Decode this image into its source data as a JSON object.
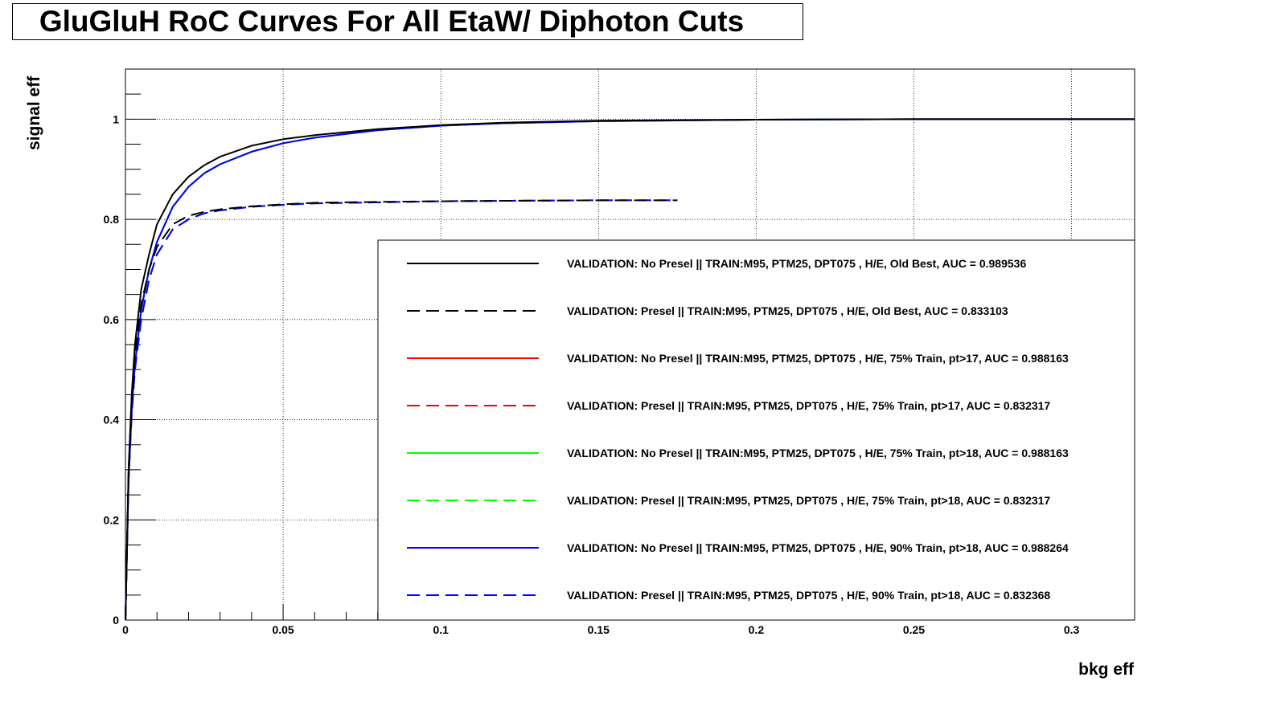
{
  "chart_data": {
    "type": "line",
    "title": "GluGluH RoC Curves For All EtaW/ Diphoton Cuts",
    "xlabel": "bkg eff",
    "ylabel": "signal eff",
    "xlim": [
      0,
      0.32
    ],
    "ylim": [
      0,
      1.1
    ],
    "x_ticks": [
      0,
      0.05,
      0.1,
      0.15,
      0.2,
      0.25,
      0.3
    ],
    "x_tick_labels": [
      "0",
      "0.05",
      "0.1",
      "0.15",
      "0.2",
      "0.25",
      "0.3"
    ],
    "y_ticks": [
      0,
      0.2,
      0.4,
      0.6,
      0.8,
      1.0
    ],
    "y_tick_labels": [
      "0",
      "0.2",
      "0.4",
      "0.6",
      "0.8",
      "1"
    ],
    "grid": true,
    "legend_position": "bottom-right",
    "series": [
      {
        "name": "VALIDATION: No Presel || TRAIN:M95, PTM25, DPT075 , H/E, Old Best, AUC = 0.989536",
        "color": "#000000",
        "dashed": false,
        "x": [
          0,
          0.001,
          0.002,
          0.003,
          0.005,
          0.0075,
          0.01,
          0.015,
          0.02,
          0.025,
          0.03,
          0.04,
          0.05,
          0.06,
          0.08,
          0.1,
          0.12,
          0.15,
          0.2,
          0.25,
          0.32
        ],
        "y": [
          0,
          0.3,
          0.45,
          0.55,
          0.66,
          0.73,
          0.79,
          0.85,
          0.885,
          0.908,
          0.925,
          0.947,
          0.96,
          0.968,
          0.98,
          0.988,
          0.993,
          0.997,
          0.999,
          1.0,
          1.0
        ]
      },
      {
        "name": "VALIDATION: Presel || TRAIN:M95, PTM25, DPT075 , H/E, Old Best, AUC = 0.833103",
        "color": "#000000",
        "dashed": true,
        "x": [
          0,
          0.001,
          0.002,
          0.003,
          0.005,
          0.0075,
          0.01,
          0.015,
          0.02,
          0.025,
          0.03,
          0.04,
          0.05,
          0.06,
          0.08,
          0.1,
          0.12,
          0.15,
          0.175
        ],
        "y": [
          0,
          0.3,
          0.44,
          0.53,
          0.63,
          0.7,
          0.745,
          0.79,
          0.807,
          0.815,
          0.82,
          0.826,
          0.83,
          0.833,
          0.835,
          0.836,
          0.837,
          0.838,
          0.838
        ]
      },
      {
        "name": "VALIDATION: No Presel || TRAIN:M95, PTM25, DPT075 , H/E, 75% Train, pt>17, AUC = 0.988163",
        "color": "#ff0000",
        "dashed": false,
        "x": [
          0,
          0.001,
          0.002,
          0.003,
          0.005,
          0.0075,
          0.01,
          0.015,
          0.02,
          0.025,
          0.03,
          0.04,
          0.05,
          0.06,
          0.08,
          0.1,
          0.12,
          0.15,
          0.2,
          0.25,
          0.32
        ],
        "y": [
          0,
          0.28,
          0.42,
          0.51,
          0.62,
          0.7,
          0.755,
          0.825,
          0.865,
          0.892,
          0.91,
          0.935,
          0.952,
          0.963,
          0.978,
          0.987,
          0.992,
          0.996,
          0.999,
          1.0,
          1.0
        ]
      },
      {
        "name": "VALIDATION: Presel || TRAIN:M95, PTM25, DPT075 , H/E, 75% Train, pt>17, AUC = 0.832317",
        "color": "#ff0000",
        "dashed": true,
        "x": [
          0,
          0.001,
          0.002,
          0.003,
          0.005,
          0.0075,
          0.01,
          0.015,
          0.02,
          0.025,
          0.03,
          0.04,
          0.05,
          0.06,
          0.08,
          0.1,
          0.12,
          0.15,
          0.175
        ],
        "y": [
          0,
          0.28,
          0.41,
          0.5,
          0.6,
          0.68,
          0.73,
          0.78,
          0.8,
          0.812,
          0.818,
          0.825,
          0.829,
          0.832,
          0.834,
          0.836,
          0.837,
          0.838,
          0.838
        ]
      },
      {
        "name": "VALIDATION: No Presel || TRAIN:M95, PTM25, DPT075 , H/E, 75% Train, pt>18, AUC = 0.988163",
        "color": "#00ff00",
        "dashed": false,
        "x": [
          0,
          0.001,
          0.002,
          0.003,
          0.005,
          0.0075,
          0.01,
          0.015,
          0.02,
          0.025,
          0.03,
          0.04,
          0.05,
          0.06,
          0.08,
          0.1,
          0.12,
          0.15,
          0.2,
          0.25,
          0.32
        ],
        "y": [
          0,
          0.28,
          0.42,
          0.51,
          0.62,
          0.7,
          0.755,
          0.825,
          0.865,
          0.892,
          0.91,
          0.935,
          0.952,
          0.963,
          0.978,
          0.987,
          0.992,
          0.996,
          0.999,
          1.0,
          1.0
        ]
      },
      {
        "name": "VALIDATION: Presel || TRAIN:M95, PTM25, DPT075 , H/E, 75% Train, pt>18, AUC = 0.832317",
        "color": "#00ff00",
        "dashed": true,
        "x": [
          0,
          0.001,
          0.002,
          0.003,
          0.005,
          0.0075,
          0.01,
          0.015,
          0.02,
          0.025,
          0.03,
          0.04,
          0.05,
          0.06,
          0.08,
          0.1,
          0.12,
          0.15,
          0.175
        ],
        "y": [
          0,
          0.28,
          0.41,
          0.5,
          0.6,
          0.68,
          0.73,
          0.78,
          0.8,
          0.812,
          0.818,
          0.825,
          0.829,
          0.832,
          0.834,
          0.836,
          0.837,
          0.838,
          0.838
        ]
      },
      {
        "name": "VALIDATION: No Presel || TRAIN:M95, PTM25, DPT075 , H/E, 90% Train, pt>18, AUC = 0.988264",
        "color": "#0000ff",
        "dashed": false,
        "x": [
          0,
          0.001,
          0.002,
          0.003,
          0.005,
          0.0075,
          0.01,
          0.015,
          0.02,
          0.025,
          0.03,
          0.04,
          0.05,
          0.06,
          0.08,
          0.1,
          0.12,
          0.15,
          0.2,
          0.25,
          0.32
        ],
        "y": [
          0,
          0.28,
          0.42,
          0.51,
          0.62,
          0.7,
          0.755,
          0.825,
          0.865,
          0.892,
          0.91,
          0.935,
          0.952,
          0.963,
          0.978,
          0.987,
          0.992,
          0.996,
          0.999,
          1.0,
          1.0
        ]
      },
      {
        "name": "VALIDATION: Presel || TRAIN:M95, PTM25, DPT075 , H/E, 90% Train, pt>18, AUC = 0.832368",
        "color": "#0000ff",
        "dashed": true,
        "x": [
          0,
          0.001,
          0.002,
          0.003,
          0.005,
          0.0075,
          0.01,
          0.015,
          0.02,
          0.025,
          0.03,
          0.04,
          0.05,
          0.06,
          0.08,
          0.1,
          0.12,
          0.15,
          0.175
        ],
        "y": [
          0,
          0.28,
          0.41,
          0.5,
          0.6,
          0.68,
          0.73,
          0.78,
          0.8,
          0.812,
          0.818,
          0.825,
          0.829,
          0.832,
          0.834,
          0.836,
          0.837,
          0.838,
          0.838
        ]
      }
    ]
  }
}
